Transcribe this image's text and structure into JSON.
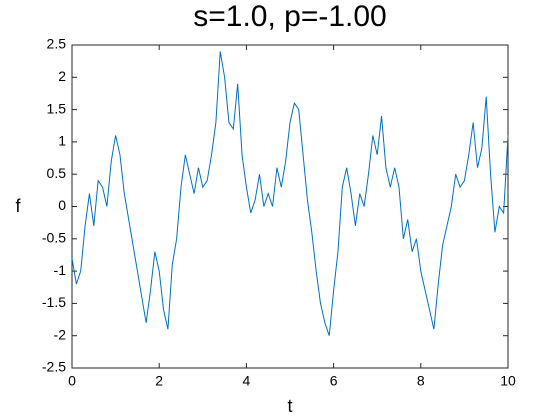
{
  "chart_data": {
    "type": "line",
    "title": "s=1.0, p=-1.00",
    "x_label": "t",
    "y_label": "f",
    "x": [
      0,
      0.1,
      0.2,
      0.3,
      0.4,
      0.5,
      0.6,
      0.7,
      0.8,
      0.9,
      1,
      1.1,
      1.2,
      1.3,
      1.4,
      1.5,
      1.6,
      1.7,
      1.8,
      1.9,
      2,
      2.1,
      2.2,
      2.3,
      2.4,
      2.5,
      2.6,
      2.7,
      2.8,
      2.9,
      3,
      3.1,
      3.2,
      3.3,
      3.4,
      3.5,
      3.6,
      3.7,
      3.8,
      3.9,
      4,
      4.1,
      4.2,
      4.3,
      4.4,
      4.5,
      4.6,
      4.7,
      4.8,
      4.9,
      5,
      5.1,
      5.2,
      5.3,
      5.4,
      5.5,
      5.6,
      5.7,
      5.8,
      5.9,
      6,
      6.1,
      6.2,
      6.3,
      6.4,
      6.5,
      6.6,
      6.7,
      6.8,
      6.9,
      7,
      7.1,
      7.2,
      7.3,
      7.4,
      7.5,
      7.6,
      7.7,
      7.8,
      7.9,
      8,
      8.1,
      8.2,
      8.3,
      8.4,
      8.5,
      8.6,
      8.7,
      8.8,
      8.9,
      9,
      9.1,
      9.2,
      9.3,
      9.4,
      9.5,
      9.6,
      9.7,
      9.8,
      9.9,
      10
    ],
    "series": [
      {
        "color": "#0072bd",
        "values": [
          -0.8,
          -1.2,
          -1.0,
          -0.3,
          0.2,
          -0.3,
          0.4,
          0.3,
          0.0,
          0.7,
          1.1,
          0.8,
          0.2,
          -0.2,
          -0.6,
          -1.0,
          -1.4,
          -1.8,
          -1.3,
          -0.7,
          -1.0,
          -1.6,
          -1.9,
          -0.9,
          -0.5,
          0.3,
          0.8,
          0.5,
          0.2,
          0.6,
          0.3,
          0.4,
          0.8,
          1.3,
          2.4,
          2.0,
          1.3,
          1.2,
          1.9,
          0.8,
          0.3,
          -0.1,
          0.1,
          0.5,
          0.0,
          0.2,
          0.0,
          0.6,
          0.3,
          0.7,
          1.3,
          1.6,
          1.5,
          0.8,
          0.1,
          -0.4,
          -1.0,
          -1.5,
          -1.8,
          -2.0,
          -1.3,
          -0.7,
          0.3,
          0.6,
          0.2,
          -0.3,
          0.2,
          0.0,
          0.5,
          1.1,
          0.8,
          1.4,
          0.6,
          0.3,
          0.6,
          0.3,
          -0.5,
          -0.2,
          -0.7,
          -0.5,
          -1.0,
          -1.3,
          -1.6,
          -1.9,
          -1.2,
          -0.6,
          -0.3,
          0.0,
          0.5,
          0.3,
          0.4,
          0.8,
          1.3,
          0.6,
          0.9,
          1.7,
          0.5,
          -0.4,
          0.0,
          -0.1,
          1.1
        ]
      }
    ],
    "xlim": [
      0,
      10
    ],
    "xticks": [
      0,
      2,
      4,
      6,
      8,
      10
    ],
    "ylim": [
      -2.5,
      2.5
    ],
    "yticks": [
      -2.5,
      -2,
      -1.5,
      -1,
      -0.5,
      0,
      0.5,
      1,
      1.5,
      2,
      2.5
    ]
  }
}
